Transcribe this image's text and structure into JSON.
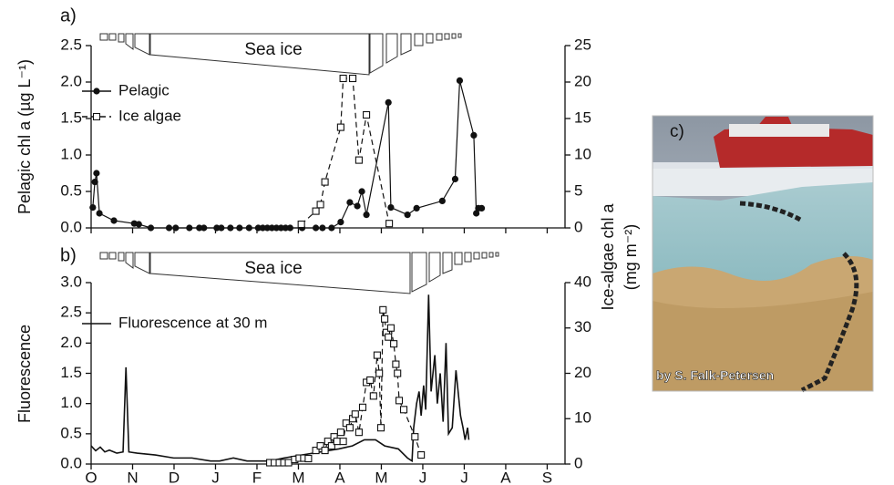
{
  "chart_data": [
    {
      "type": "line",
      "panel_label": "a)",
      "ice_label": "Sea ice",
      "ylabel": "Pelagic chl a (µg L⁻¹)",
      "xlim": [
        0,
        11.43
      ],
      "xticks": [
        0,
        1,
        2,
        3,
        4,
        5,
        6,
        7,
        8,
        9,
        10,
        11
      ],
      "xtick_labels": false,
      "ylim": [
        0,
        2.5
      ],
      "yticks": [
        {
          "value": 0,
          "label": "0.0"
        },
        {
          "value": 0.5,
          "label": "0.5"
        },
        {
          "value": 1,
          "label": "1.0"
        },
        {
          "value": 1.5,
          "label": "1.5"
        },
        {
          "value": 2,
          "label": "2.0"
        },
        {
          "value": 2.5,
          "label": "2.5"
        }
      ],
      "y2lim": [
        0,
        25
      ],
      "y2ticks": [
        0,
        5,
        10,
        15,
        20,
        25
      ],
      "series": [
        {
          "name": "Pelagic",
          "color": "#111111",
          "marker": "circle",
          "dash": false,
          "x": [
            0.04,
            0.09,
            0.13,
            0.2,
            0.55,
            1.04,
            1.15,
            1.44,
            1.88,
            2.04,
            2.37,
            2.61,
            2.72,
            3.03,
            3.14,
            3.36,
            3.58,
            3.81,
            4.03,
            4.14,
            4.25,
            4.36,
            4.47,
            4.58,
            4.69,
            4.8,
            5.09,
            5.42,
            5.58,
            5.8,
            6.02,
            6.24,
            6.42,
            6.53,
            6.64,
            7.17,
            7.23,
            7.63,
            7.85,
            8.47,
            8.78,
            8.89,
            9.23,
            9.29,
            9.34,
            9.42
          ],
          "values": [
            0.28,
            0.63,
            0.75,
            0.2,
            0.1,
            0.06,
            0.05,
            0,
            0,
            0,
            0,
            0,
            0,
            0,
            0,
            0,
            0,
            0,
            0,
            0,
            0,
            0,
            0,
            0,
            0,
            0,
            0,
            0,
            0,
            0,
            0.08,
            0.35,
            0.3,
            0.5,
            0.18,
            1.72,
            0.28,
            0.18,
            0.27,
            0.37,
            0.67,
            2.02,
            1.27,
            0.2,
            0.27,
            0.27
          ]
        },
        {
          "name": "Ice algae",
          "color": "#111111",
          "marker": "square",
          "dash": true,
          "axis": "y2",
          "x": [
            5.07,
            5.42,
            5.53,
            5.64,
            6.02,
            6.08,
            6.31,
            6.46,
            6.64,
            7.19
          ],
          "values": [
            0.5,
            2.3,
            3.2,
            6.3,
            13.8,
            20.5,
            20.5,
            9.3,
            15.5,
            0.6
          ]
        }
      ]
    },
    {
      "type": "line",
      "panel_label": "b)",
      "ice_label": "Sea ice",
      "ylabel": "Fluorescence",
      "xlim": [
        0,
        11.43
      ],
      "xtick_labels": true,
      "xticks": [
        {
          "value": 0,
          "label": "O"
        },
        {
          "value": 1,
          "label": "N"
        },
        {
          "value": 2,
          "label": "D"
        },
        {
          "value": 3,
          "label": "J"
        },
        {
          "value": 4,
          "label": "F"
        },
        {
          "value": 5,
          "label": "M"
        },
        {
          "value": 6,
          "label": "A"
        },
        {
          "value": 7,
          "label": "M"
        },
        {
          "value": 8,
          "label": "J"
        },
        {
          "value": 9,
          "label": "J"
        },
        {
          "value": 10,
          "label": "A"
        },
        {
          "value": 11,
          "label": "S"
        }
      ],
      "ylim": [
        0,
        3
      ],
      "yticks": [
        {
          "value": 0,
          "label": "0.0"
        },
        {
          "value": 0.5,
          "label": "0.5"
        },
        {
          "value": 1,
          "label": "1.0"
        },
        {
          "value": 1.5,
          "label": "1.5"
        },
        {
          "value": 2,
          "label": "2.0"
        },
        {
          "value": 2.5,
          "label": "2.5"
        },
        {
          "value": 3,
          "label": "3.0"
        }
      ],
      "y2lim": [
        0,
        40
      ],
      "y2ticks": [
        0,
        10,
        20,
        30,
        40
      ],
      "series": [
        {
          "name": "Fluorescence at 30 m",
          "color": "#111111",
          "marker": "none",
          "dash": false,
          "x": [
            0,
            0.11,
            0.22,
            0.33,
            0.44,
            0.62,
            0.77,
            0.84,
            0.91,
            1.11,
            1.55,
            1.99,
            2.43,
            2.88,
            3.1,
            3.43,
            3.76,
            4.09,
            4.31,
            4.65,
            5.09,
            5.53,
            5.97,
            6.3,
            6.59,
            6.86,
            7.08,
            7.41,
            7.63,
            7.74,
            7.78,
            7.85,
            7.91,
            7.96,
            8.02,
            8.07,
            8.14,
            8.2,
            8.29,
            8.35,
            8.42,
            8.49,
            8.56,
            8.62,
            8.71,
            8.8,
            8.91,
            8.97,
            9.02,
            9.08,
            9.11
          ],
          "values": [
            0.3,
            0.22,
            0.28,
            0.2,
            0.23,
            0.18,
            0.2,
            1.6,
            0.2,
            0.18,
            0.15,
            0.1,
            0.1,
            0.05,
            0.05,
            0.1,
            0.05,
            0.05,
            0.05,
            0.1,
            0.15,
            0.2,
            0.25,
            0.3,
            0.4,
            0.4,
            0.3,
            0.25,
            0.1,
            0.05,
            0.6,
            1,
            1.2,
            0.8,
            1.3,
            0.9,
            2.8,
            1.2,
            1.8,
            1,
            1.5,
            0.7,
            2,
            0.5,
            0.6,
            1.55,
            0.8,
            0.6,
            0.4,
            0.6,
            0.4
          ]
        },
        {
          "color": "#111111",
          "marker": "square",
          "dash": true,
          "axis": "y2",
          "x": [
            4.31,
            4.42,
            4.54,
            4.65,
            4.76,
            4.91,
            5.02,
            5.13,
            5.24,
            5.42,
            5.53,
            5.64,
            5.71,
            5.8,
            5.86,
            5.93,
            6.02,
            6.08,
            6.15,
            6.24,
            6.31,
            6.37,
            6.46,
            6.55,
            6.64,
            6.73,
            6.81,
            6.9,
            6.95,
            6.99,
            7.04,
            7.08,
            7.12,
            7.17,
            7.23,
            7.3,
            7.35,
            7.39,
            7.43,
            7.54,
            7.81,
            7.96
          ],
          "values": [
            0.3,
            0.3,
            0.3,
            0.3,
            0.3,
            1,
            1.3,
            1.3,
            1.2,
            3,
            4,
            3,
            5,
            4,
            6,
            5,
            7,
            5,
            9,
            8,
            10,
            11,
            7,
            12.5,
            18,
            18.5,
            15,
            24,
            20,
            8,
            34,
            32,
            29,
            28,
            30,
            26.5,
            22,
            20,
            14,
            12,
            6,
            2
          ]
        }
      ]
    }
  ],
  "y2label": [
    "Ice-algae chl a",
    "(mg m⁻²)"
  ],
  "photo": {
    "panel_label": "c)",
    "credit": "by S. Falk-Petersen"
  }
}
